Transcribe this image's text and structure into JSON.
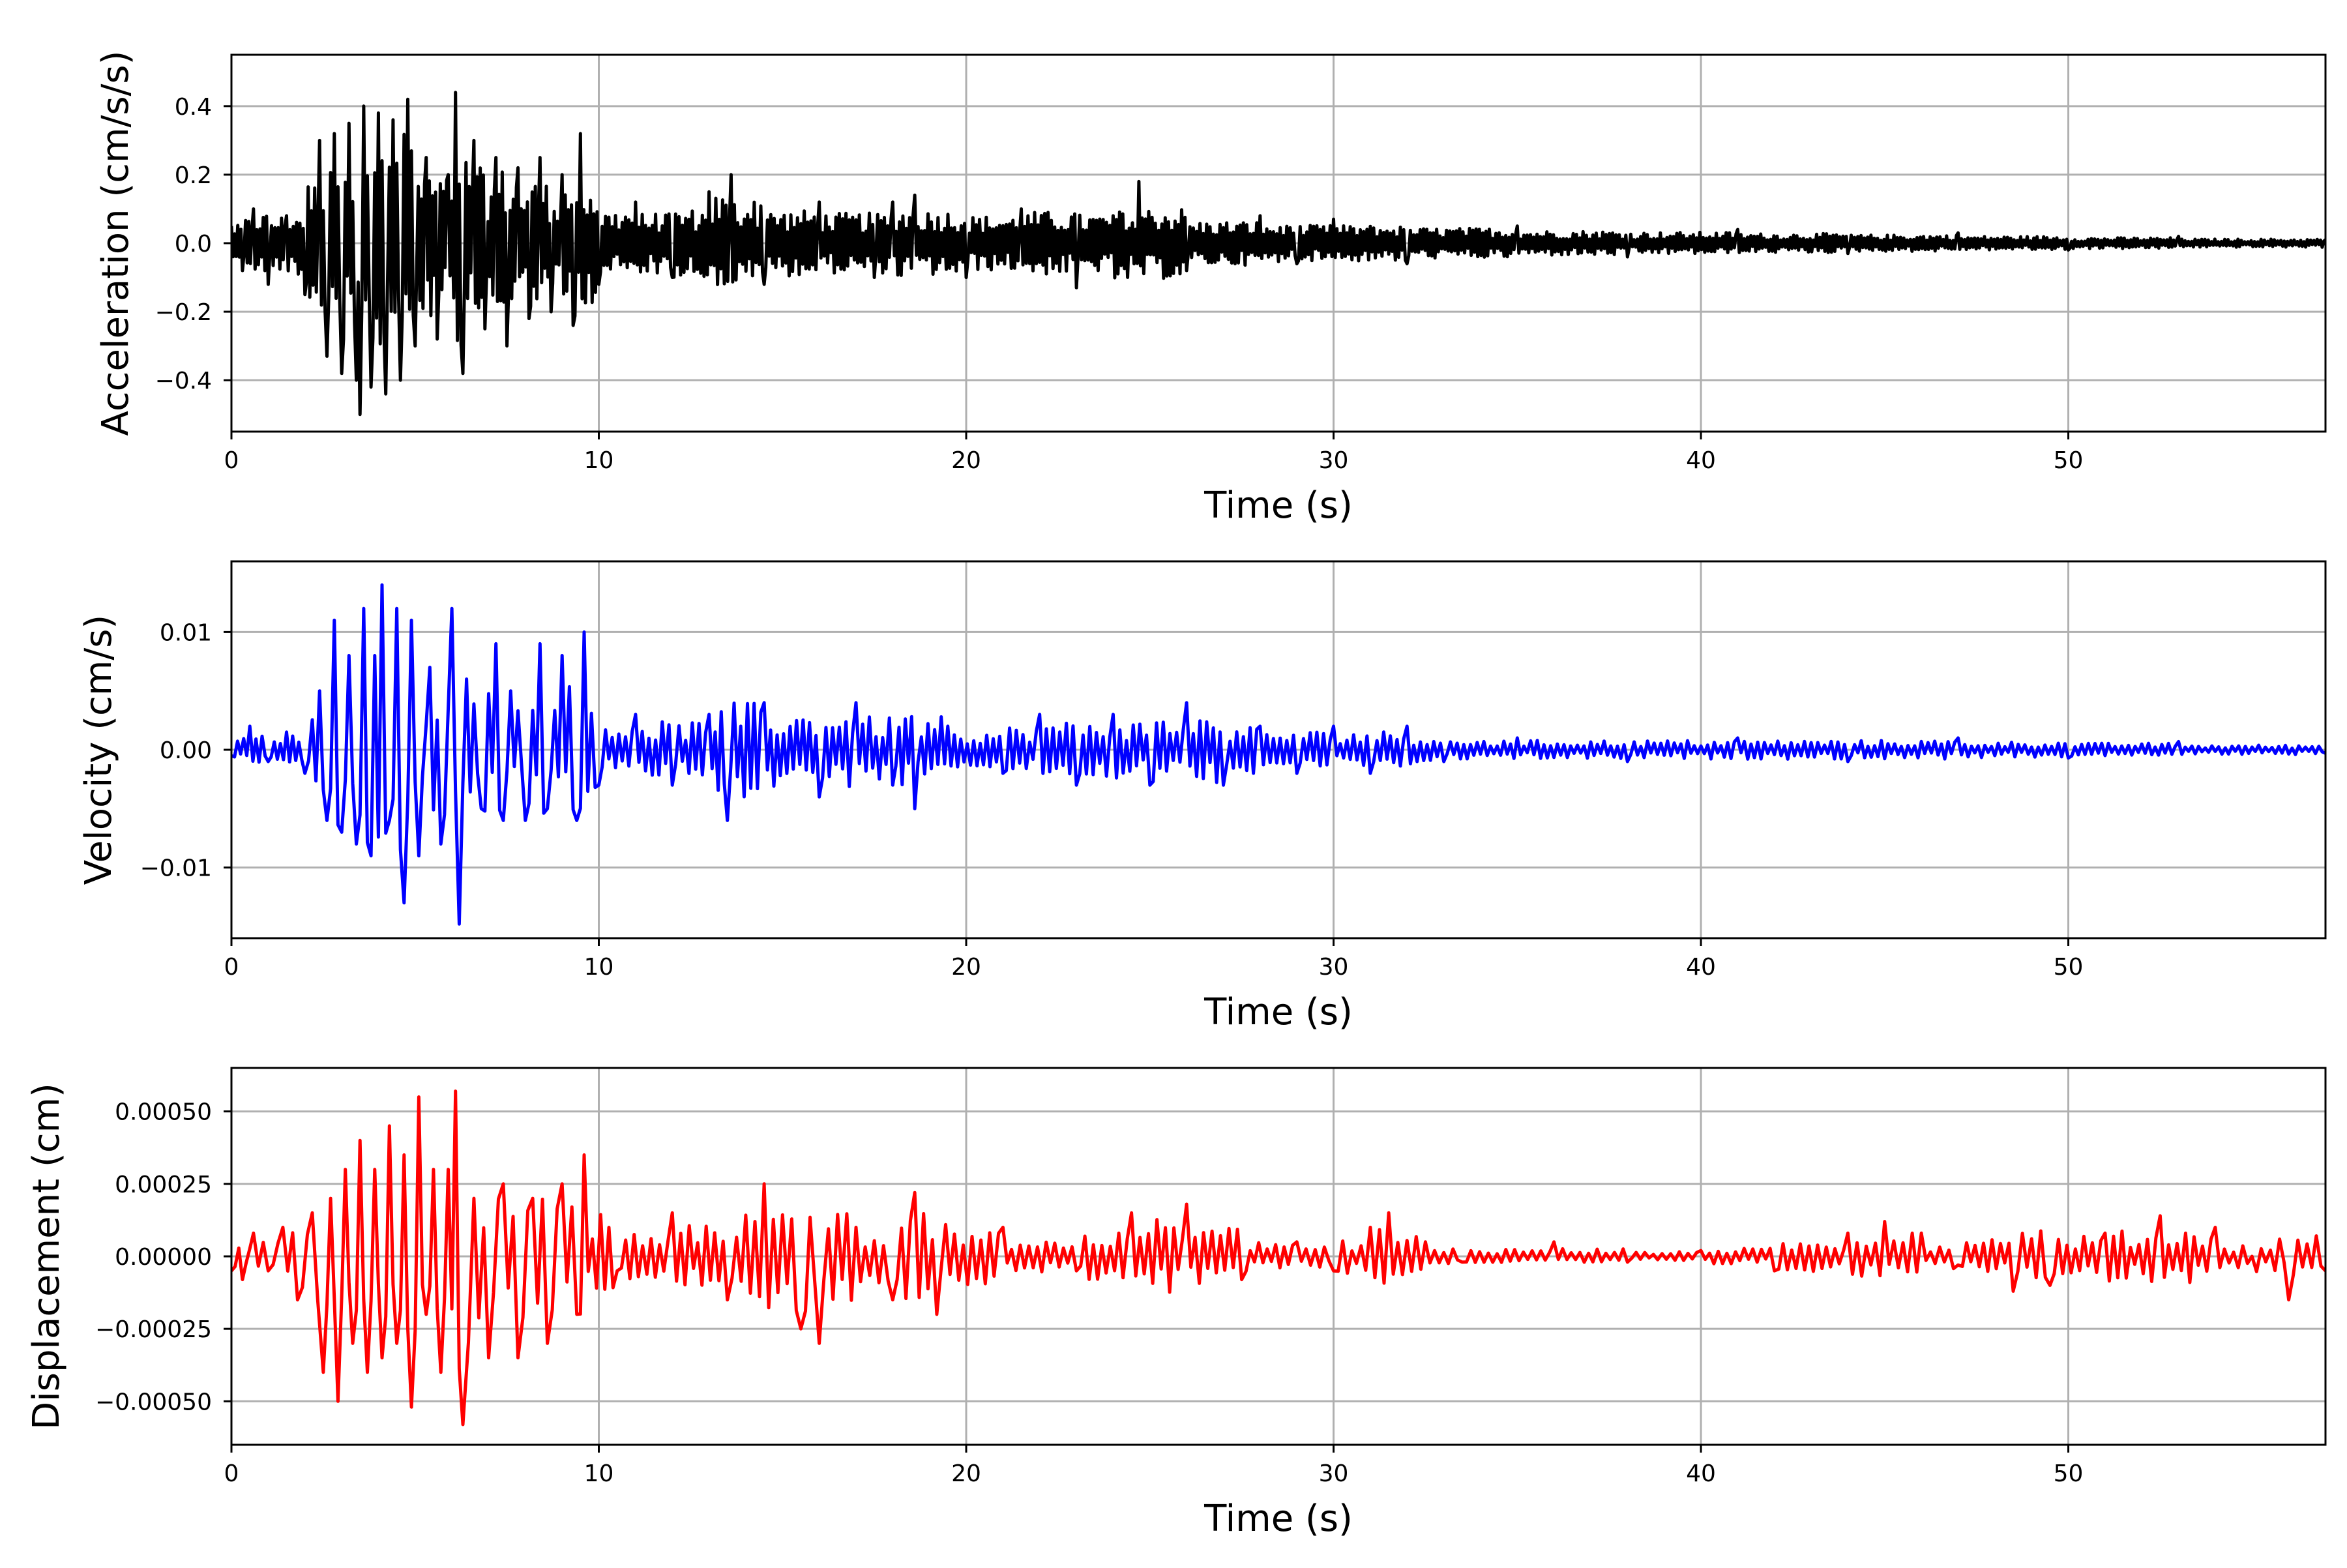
{
  "figure": {
    "panels": [
      {
        "id": "acceleration",
        "color": "#000000",
        "chart_data": {
          "type": "line",
          "title": "",
          "xlabel": "Time (s)",
          "ylabel": "Acceleration (cm/s/s)",
          "xlim": [
            0,
            57
          ],
          "ylim": [
            -0.55,
            0.55
          ],
          "xticks": [
            0,
            10,
            20,
            30,
            40,
            50
          ],
          "xtick_labels": [
            "0",
            "10",
            "20",
            "30",
            "40",
            "50"
          ],
          "yticks": [
            -0.4,
            -0.2,
            0.0,
            0.2,
            0.4
          ],
          "ytick_labels": [
            "−0.4",
            "−0.2",
            "0.0",
            "0.2",
            "0.4"
          ],
          "grid": true,
          "series": [
            {
              "x": [
                0,
                0.3,
                0.6,
                1.0,
                1.5,
                2.0,
                2.4,
                2.6,
                2.8,
                3.0,
                3.2,
                3.4,
                3.5,
                3.6,
                3.8,
                4.0,
                4.2,
                4.4,
                4.6,
                4.8,
                5.0,
                5.3,
                5.6,
                5.9,
                6.1,
                6.3,
                6.6,
                6.9,
                7.2,
                7.5,
                7.8,
                8.1,
                8.4,
                8.7,
                9.0,
                9.3,
                9.5,
                10.0,
                11.0,
                12.0,
                13.0,
                13.6,
                14.5,
                16.0,
                17.5,
                18.0,
                18.6,
                20.0,
                21.5,
                23.0,
                24.0,
                24.7,
                26.0,
                28.0,
                29.0,
                30.0,
                32.0,
                35.0,
                38.0,
                41.0,
                44.0,
                47.0,
                50.0,
                53.0,
                57.0
              ],
              "y": [
                0.05,
                -0.08,
                0.1,
                -0.12,
                0.08,
                -0.15,
                0.3,
                -0.33,
                0.32,
                -0.38,
                0.35,
                -0.4,
                -0.5,
                0.4,
                -0.42,
                0.38,
                -0.44,
                0.36,
                -0.4,
                0.42,
                -0.3,
                0.25,
                -0.28,
                0.2,
                0.44,
                -0.38,
                0.3,
                -0.25,
                0.25,
                -0.3,
                0.22,
                -0.22,
                0.25,
                -0.2,
                0.2,
                -0.24,
                0.32,
                -0.12,
                0.12,
                -0.1,
                0.15,
                0.2,
                -0.12,
                0.12,
                -0.1,
                0.12,
                0.14,
                -0.1,
                0.1,
                -0.13,
                0.08,
                0.18,
                -0.08,
                0.08,
                -0.06,
                0.07,
                -0.06,
                0.05,
                -0.04,
                0.04,
                -0.03,
                0.03,
                -0.02,
                0.02,
                0.01
              ]
            }
          ]
        }
      },
      {
        "id": "velocity",
        "color": "#0000ff",
        "chart_data": {
          "type": "line",
          "title": "",
          "xlabel": "Time (s)",
          "ylabel": "Velocity (cm/s)",
          "xlim": [
            0,
            57
          ],
          "ylim": [
            -0.016,
            0.016
          ],
          "xticks": [
            0,
            10,
            20,
            30,
            40,
            50
          ],
          "xtick_labels": [
            "0",
            "10",
            "20",
            "30",
            "40",
            "50"
          ],
          "yticks": [
            -0.01,
            0.0,
            0.01
          ],
          "ytick_labels": [
            "−0.01",
            "0.00",
            "0.01"
          ],
          "grid": true,
          "series": [
            {
              "x": [
                0,
                0.5,
                1.0,
                1.5,
                2.0,
                2.4,
                2.6,
                2.8,
                3.0,
                3.2,
                3.4,
                3.6,
                3.8,
                3.9,
                4.1,
                4.3,
                4.5,
                4.7,
                4.9,
                5.1,
                5.4,
                5.7,
                6.0,
                6.2,
                6.4,
                6.8,
                7.2,
                7.4,
                7.6,
                8.0,
                8.4,
                8.6,
                9.0,
                9.4,
                9.6,
                10.0,
                11.0,
                12.0,
                13.0,
                13.5,
                14.5,
                16.0,
                17.0,
                18.0,
                18.6,
                19.5,
                21.0,
                22.0,
                23.0,
                24.0,
                25.0,
                26.0,
                27.0,
                28.0,
                29.0,
                30.0,
                31.0,
                32.0,
                33.0,
                35.0,
                38.0,
                41.0,
                44.0,
                47.0,
                50.0,
                53.0,
                57.0
              ],
              "y": [
                -0.0005,
                0.002,
                -0.001,
                0.0015,
                -0.002,
                0.005,
                -0.006,
                0.011,
                -0.007,
                0.008,
                -0.008,
                0.012,
                -0.009,
                0.008,
                0.014,
                -0.006,
                0.012,
                -0.013,
                0.011,
                -0.009,
                0.007,
                -0.008,
                0.012,
                -0.0148,
                0.006,
                -0.005,
                0.009,
                -0.006,
                0.005,
                -0.006,
                0.009,
                -0.005,
                0.008,
                -0.006,
                0.01,
                -0.003,
                0.003,
                -0.003,
                0.003,
                -0.006,
                0.004,
                -0.004,
                0.004,
                -0.003,
                -0.005,
                0.002,
                -0.002,
                0.003,
                -0.003,
                0.003,
                -0.003,
                0.004,
                -0.003,
                0.002,
                -0.002,
                0.002,
                -0.002,
                0.002,
                -0.001,
                0.001,
                -0.001,
                0.001,
                -0.001,
                0.001,
                -0.0007,
                0.0007,
                -0.0003
              ]
            }
          ]
        }
      },
      {
        "id": "displacement",
        "color": "#ff0000",
        "chart_data": {
          "type": "line",
          "title": "",
          "xlabel": "Time (s)",
          "ylabel": "Displacement (cm)",
          "xlim": [
            0,
            57
          ],
          "ylim": [
            -0.00065,
            0.00065
          ],
          "xticks": [
            0,
            10,
            20,
            30,
            40,
            50
          ],
          "xtick_labels": [
            "0",
            "10",
            "20",
            "30",
            "40",
            "50"
          ],
          "yticks": [
            -0.0005,
            -0.00025,
            0.0,
            0.00025,
            0.0005
          ],
          "ytick_labels": [
            "−0.00050",
            "−0.00025",
            "0.00000",
            "0.00025",
            "0.00050"
          ],
          "grid": true,
          "series": [
            {
              "x": [
                0,
                0.3,
                0.6,
                1.0,
                1.4,
                1.8,
                2.2,
                2.5,
                2.7,
                2.9,
                3.1,
                3.3,
                3.5,
                3.7,
                3.9,
                4.1,
                4.3,
                4.5,
                4.7,
                4.9,
                5.1,
                5.3,
                5.5,
                5.7,
                5.9,
                6.1,
                6.3,
                6.6,
                7.0,
                7.4,
                7.8,
                8.2,
                8.6,
                9.0,
                9.4,
                9.6,
                10.5,
                12.0,
                13.5,
                14.5,
                15.5,
                16.0,
                17.0,
                18.0,
                18.6,
                19.2,
                21.0,
                23.0,
                24.5,
                26.0,
                27.5,
                29.0,
                30.0,
                31.0,
                31.5,
                32.5,
                33.5,
                36.0,
                38.0,
                40.0,
                42.0,
                44.0,
                45.0,
                46.0,
                47.0,
                48.5,
                49.5,
                51.0,
                52.5,
                54.0,
                55.0,
                56.0,
                57.0
              ],
              "y": [
                -5e-05,
                -8e-05,
                8e-05,
                -5e-05,
                0.0001,
                -0.00015,
                0.00015,
                -0.0004,
                0.0002,
                -0.0005,
                0.0003,
                -0.0003,
                0.0004,
                -0.0004,
                0.0003,
                -0.00035,
                0.00045,
                -0.0003,
                0.00035,
                -0.00052,
                0.00055,
                -0.0002,
                0.0003,
                -0.0004,
                0.0003,
                0.00057,
                -0.00058,
                0.0002,
                -0.00035,
                0.00025,
                -0.00035,
                0.0002,
                -0.0003,
                0.00025,
                -0.0002,
                0.00035,
                -5e-05,
                0.00015,
                -0.00015,
                0.00025,
                -0.00025,
                -0.0003,
                0.0001,
                -0.00015,
                0.00022,
                -0.0002,
                0.0001,
                -5e-05,
                0.00015,
                0.00018,
                -8e-05,
                5e-05,
                -5e-05,
                0.0001,
                0.00015,
                5e-05,
                -2e-05,
                5e-05,
                -2e-05,
                2e-05,
                -5e-05,
                8e-05,
                0.00012,
                8e-05,
                -3e-05,
                -0.00012,
                -0.0001,
                8e-05,
                0.00014,
                0.0001,
                0.0,
                -0.00015,
                -5e-05
              ]
            }
          ]
        }
      }
    ]
  }
}
